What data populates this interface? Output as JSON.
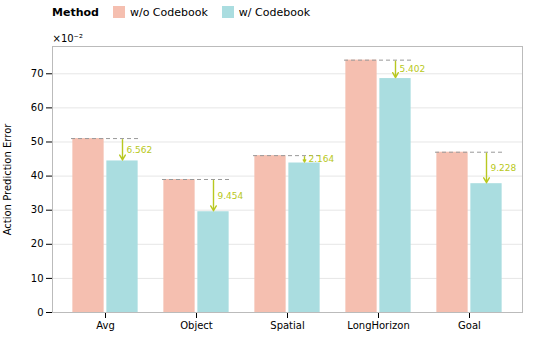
{
  "chart_data": {
    "type": "bar",
    "categories": [
      "Avg",
      "Object",
      "Spatial",
      "LongHorizon",
      "Goal"
    ],
    "series": [
      {
        "name": "w/o Codebook",
        "color": "#f5bfb0",
        "values": [
          51.0,
          39.0,
          46.0,
          74.0,
          47.0
        ]
      },
      {
        "name": "w/ Codebook",
        "color": "#aadde0",
        "values": [
          44.438,
          29.546,
          43.836,
          68.598,
          37.772
        ]
      }
    ],
    "ylabel": "Action Prediction Error",
    "ylim": [
      0,
      78
    ],
    "yticks": [
      0,
      10,
      20,
      30,
      40,
      50,
      60,
      70
    ],
    "grid": true,
    "legend": "top-left",
    "legend_title": "Method",
    "annotations": [
      {
        "text": "×10⁻²"
      },
      {
        "category": "Avg",
        "text": "6.562",
        "color": "#b8c820"
      },
      {
        "category": "Object",
        "text": "9.454",
        "color": "#b8c820"
      },
      {
        "category": "Spatial",
        "text": "2.164",
        "color": "#b8c820"
      },
      {
        "category": "LongHorizon",
        "text": "5.402",
        "color": "#b8c820"
      },
      {
        "category": "Goal",
        "text": "9.228",
        "color": "#b8c820"
      }
    ]
  }
}
